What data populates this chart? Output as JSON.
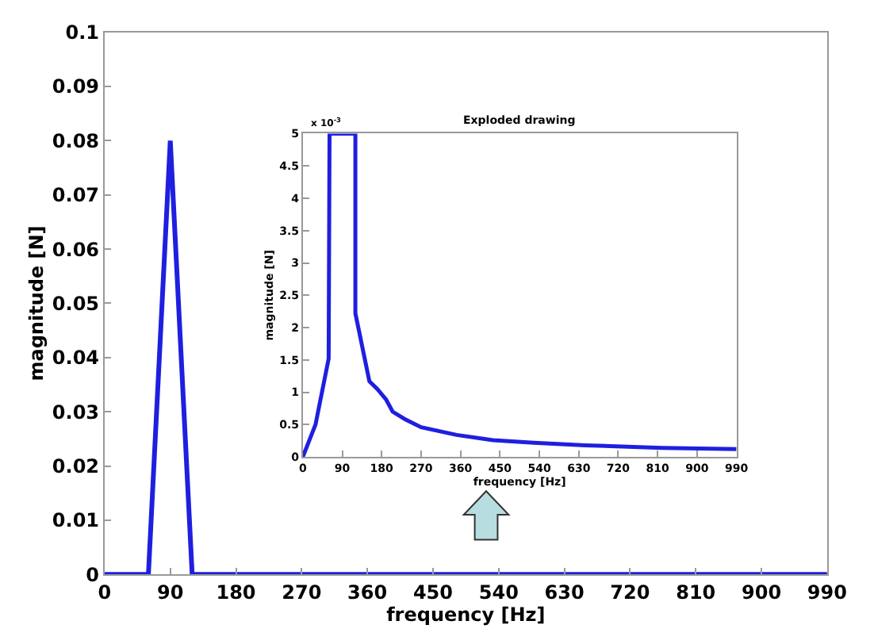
{
  "chart_data": [
    {
      "type": "line",
      "xlabel": "frequency [Hz]",
      "ylabel": "magnitude [N]",
      "x": [
        0,
        60,
        90,
        120,
        990
      ],
      "series": [
        {
          "color": "#1f1fe0",
          "values": [
            0,
            0,
            0.08,
            0,
            0
          ]
        }
      ],
      "xlim": [
        0,
        990
      ],
      "xticks": [
        0,
        90,
        180,
        270,
        360,
        450,
        540,
        630,
        720,
        810,
        900,
        990
      ],
      "ylim": [
        0,
        0.1
      ],
      "yticks": [
        0,
        0.01,
        0.02,
        0.03,
        0.04,
        0.05,
        0.06,
        0.07,
        0.08,
        0.09,
        0.1
      ],
      "marker": "none",
      "line_style": "solid"
    },
    {
      "type": "line",
      "title": "Exploded drawing",
      "xlabel": "frequency [Hz]",
      "ylabel": "magnitude [N]",
      "annotations": [
        "x 10$^{-3}$"
      ],
      "x": [
        0,
        29,
        59,
        61,
        120,
        120,
        152,
        170,
        190,
        205,
        234,
        270,
        351,
        434,
        527,
        644,
        820,
        990
      ],
      "series": [
        {
          "color": "#1f1fe0",
          "values": [
            0,
            0.5,
            1.52,
            5,
            5,
            2.22,
            1.17,
            1.05,
            0.89,
            0.7,
            0.58,
            0.46,
            0.34,
            0.26,
            0.22,
            0.18,
            0.14,
            0.12
          ]
        }
      ],
      "xlim": [
        0,
        990
      ],
      "xticks": [
        0,
        90,
        180,
        270,
        360,
        450,
        540,
        630,
        720,
        810,
        900,
        990
      ],
      "ylim": [
        0,
        5
      ],
      "yticks": [
        0,
        0.5,
        1,
        1.5,
        2,
        2.5,
        3,
        3.5,
        4,
        4.5,
        5
      ],
      "marker": "none",
      "line_style": "solid"
    }
  ]
}
